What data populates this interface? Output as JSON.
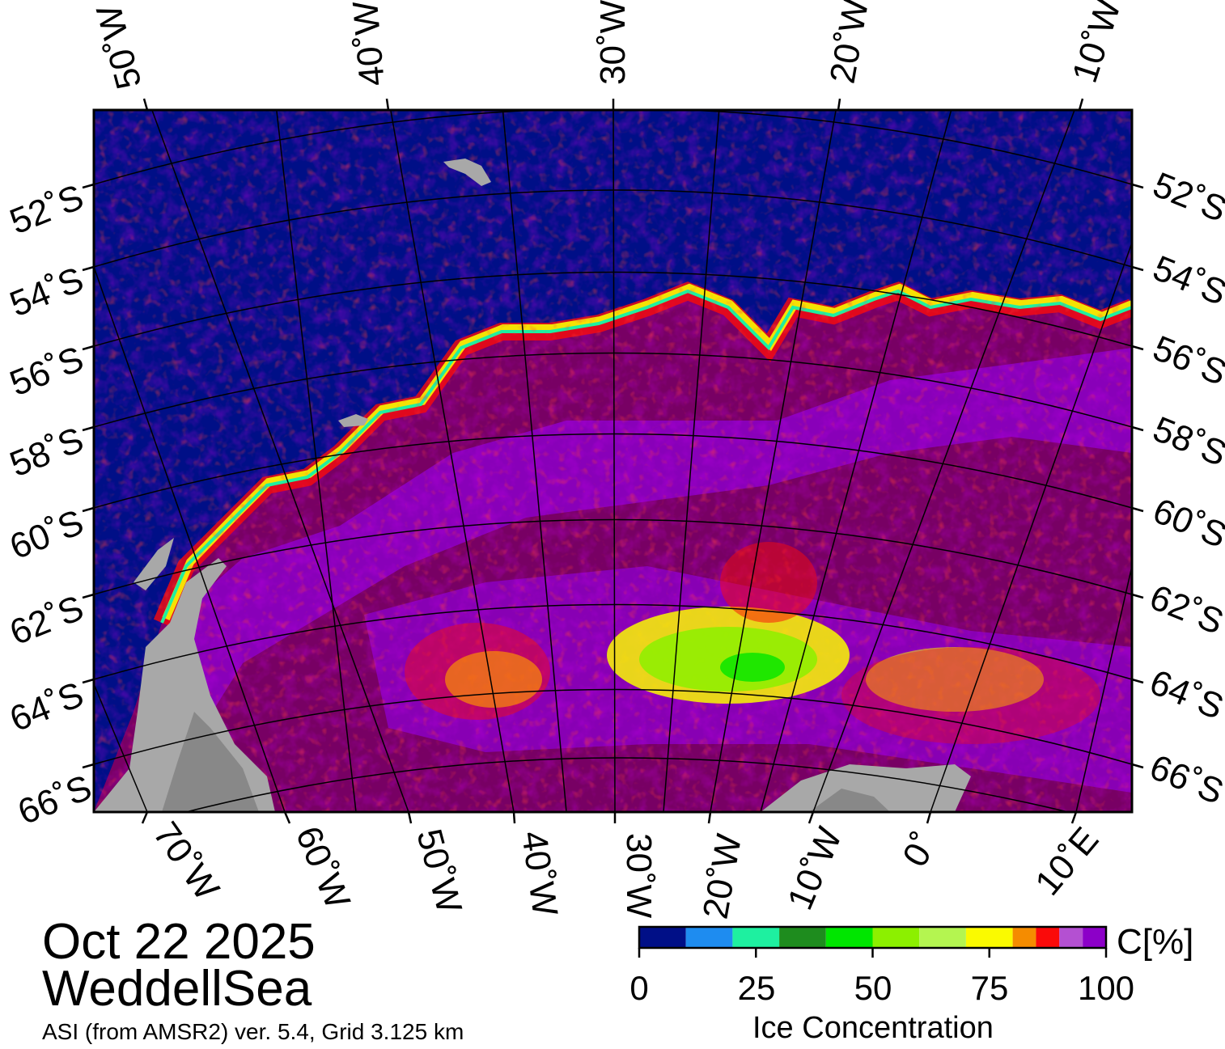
{
  "title": {
    "date": "Oct 22 2025",
    "region": "WeddellSea"
  },
  "source": "ASI (from AMSR2) ver. 5.4,  Grid 3.125 km",
  "colorbar": {
    "title": "Ice Concentration",
    "unit": "C[%]",
    "ticks": [
      "0",
      "25",
      "50",
      "75",
      "100"
    ],
    "bins": [
      {
        "range": [
          0,
          10
        ],
        "color": "#000f87"
      },
      {
        "range": [
          10,
          20
        ],
        "color": "#1e8cf0"
      },
      {
        "range": [
          20,
          30
        ],
        "color": "#1ef0a0"
      },
      {
        "range": [
          30,
          40
        ],
        "color": "#1e8c1e"
      },
      {
        "range": [
          40,
          50
        ],
        "color": "#00e600"
      },
      {
        "range": [
          50,
          60
        ],
        "color": "#8cf000"
      },
      {
        "range": [
          60,
          70
        ],
        "color": "#b4f550"
      },
      {
        "range": [
          70,
          80
        ],
        "color": "#fafa00"
      },
      {
        "range": [
          80,
          85
        ],
        "color": "#f58c00"
      },
      {
        "range": [
          85,
          90
        ],
        "color": "#fa0a0a"
      },
      {
        "range": [
          90,
          95
        ],
        "color": "#b450d2"
      },
      {
        "range": [
          95,
          100
        ],
        "color": "#8c00c8"
      }
    ]
  },
  "map": {
    "colors": {
      "ocean": "#000f87",
      "land": "#a8a8a8",
      "land_dark": "#888888",
      "pack": "#780064"
    },
    "lon_labels_top": [
      "50˚W",
      "40˚W",
      "30˚W",
      "20˚W",
      "10˚W"
    ],
    "lon_labels_bottom": [
      "70˚W",
      "60˚W",
      "50˚W",
      "40˚W",
      "30˚W",
      "20˚W",
      "10˚W",
      "0˚",
      "10˚E"
    ],
    "lat_labels": [
      "52˚S",
      "54˚S",
      "56˚S",
      "58˚S",
      "60˚S",
      "62˚S",
      "64˚S",
      "66˚S"
    ]
  }
}
